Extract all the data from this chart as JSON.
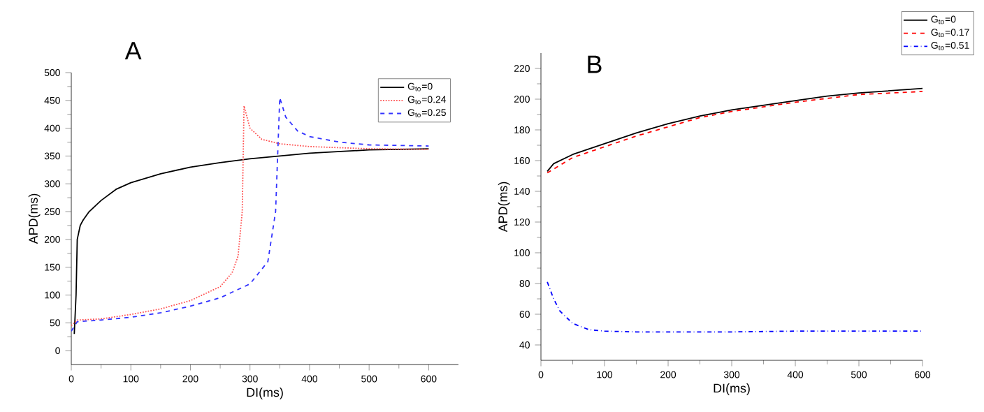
{
  "chart_data": [
    {
      "type": "line",
      "title": "A",
      "xlabel": "DI(ms)",
      "ylabel": "APD(ms)",
      "xlim": [
        0,
        650
      ],
      "ylim": [
        -25,
        500
      ],
      "xticks": [
        0,
        100,
        200,
        300,
        400,
        500,
        600
      ],
      "yticks": [
        0,
        50,
        100,
        150,
        200,
        250,
        300,
        350,
        400,
        450,
        500
      ],
      "grid": false,
      "legend": "top right",
      "marker": "none",
      "series": [
        {
          "name": "G$_{to}$=0",
          "color": "#000000",
          "line_style": "solid",
          "x": [
            5,
            8,
            10,
            15,
            20,
            30,
            50,
            75,
            100,
            150,
            200,
            250,
            300,
            350,
            400,
            450,
            500,
            600
          ],
          "values": [
            30,
            100,
            200,
            225,
            235,
            250,
            270,
            290,
            302,
            318,
            330,
            338,
            345,
            350,
            355,
            358,
            361,
            363
          ]
        },
        {
          "name": "G$_{to}$=0.24",
          "color": "#ff5555",
          "line_style": "dotted",
          "x": [
            0,
            10,
            50,
            100,
            150,
            200,
            250,
            270,
            280,
            287,
            290,
            300,
            320,
            350,
            400,
            500,
            600
          ],
          "values": [
            45,
            55,
            57,
            65,
            75,
            90,
            115,
            140,
            170,
            250,
            440,
            400,
            380,
            372,
            367,
            363,
            362
          ]
        },
        {
          "name": "G$_{to}$=0.25",
          "color": "#3333ff",
          "line_style": "dashed",
          "x": [
            0,
            10,
            50,
            100,
            150,
            200,
            250,
            300,
            330,
            343,
            350,
            360,
            380,
            400,
            450,
            500,
            600
          ],
          "values": [
            35,
            52,
            55,
            60,
            68,
            80,
            95,
            120,
            160,
            250,
            455,
            420,
            395,
            385,
            375,
            370,
            368
          ]
        }
      ]
    },
    {
      "type": "line",
      "title": "B",
      "xlabel": "DI(ms)",
      "ylabel": "APD(ms)",
      "xlim": [
        0,
        600
      ],
      "ylim": [
        30,
        230
      ],
      "xticks": [
        0,
        100,
        200,
        300,
        400,
        500,
        600
      ],
      "yticks": [
        40,
        60,
        80,
        100,
        120,
        140,
        160,
        180,
        200,
        220
      ],
      "grid": false,
      "legend": "top right",
      "marker": "none",
      "series": [
        {
          "name": "G$_{to}$=0",
          "color": "#000000",
          "line_style": "solid",
          "x": [
            10,
            20,
            50,
            100,
            150,
            200,
            250,
            300,
            350,
            400,
            450,
            500,
            600
          ],
          "values": [
            153,
            158,
            164,
            171,
            178,
            184,
            189,
            193,
            196,
            199,
            202,
            204,
            207
          ]
        },
        {
          "name": "G$_{to}$=0.17",
          "color": "#ff0000",
          "line_style": "dashed",
          "x": [
            10,
            50,
            100,
            150,
            200,
            250,
            300,
            350,
            400,
            500,
            600
          ],
          "values": [
            152,
            162,
            169,
            176,
            182,
            188,
            192,
            195,
            198,
            203,
            205
          ]
        },
        {
          "name": "G$_{to}$=0.51",
          "color": "#0000ff",
          "line_style": "dashdot",
          "x": [
            10,
            20,
            30,
            50,
            75,
            100,
            150,
            200,
            300,
            400,
            500,
            600
          ],
          "values": [
            81,
            70,
            62,
            54,
            50,
            49,
            48.5,
            48.5,
            48.5,
            49,
            49,
            49
          ]
        }
      ]
    }
  ]
}
